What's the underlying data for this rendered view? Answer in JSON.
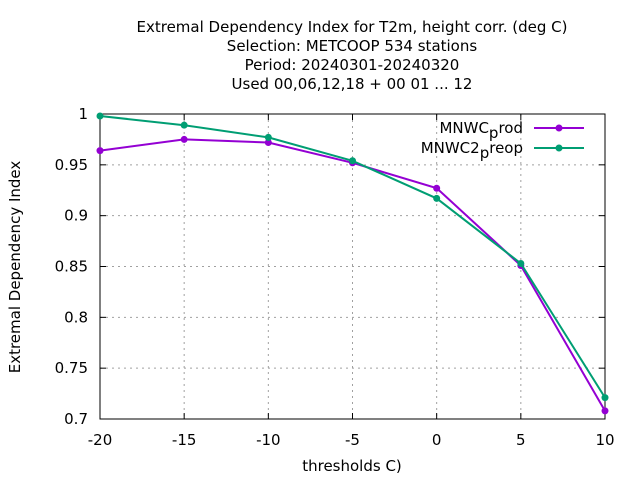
{
  "chart_data": {
    "type": "line",
    "title_lines": [
      "Extremal Dependency Index  for T2m, height corr. (deg C)",
      "Selection: METCOOP    534 stations",
      "Period: 20240301-20240320",
      "Used  00,06,12,18 + 00 01 ... 12"
    ],
    "xlabel": "thresholds C)",
    "ylabel": "Extremal Dependency Index",
    "xlim": [
      -20,
      10
    ],
    "ylim": [
      0.7,
      1.0
    ],
    "xticks": [
      -20,
      -15,
      -10,
      -5,
      0,
      5,
      10
    ],
    "yticks": [
      0.7,
      0.75,
      0.8,
      0.85,
      0.9,
      0.95,
      1.0
    ],
    "ytick_labels": [
      "0.7",
      "0.75",
      "0.8",
      "0.85",
      "0.9",
      "0.95",
      "1"
    ],
    "grid": true,
    "legend_position": "top-right",
    "series": [
      {
        "name": "MNWC_prod",
        "legend_main": "MNWC",
        "legend_sub": "p",
        "legend_rest": "rod",
        "color": "#9400d3",
        "x": [
          -20,
          -15,
          -10,
          -5,
          0,
          5,
          10
        ],
        "y": [
          0.964,
          0.975,
          0.972,
          0.952,
          0.927,
          0.851,
          0.708
        ]
      },
      {
        "name": "MNWC2_preop",
        "legend_main": "MNWC2",
        "legend_sub": "p",
        "legend_rest": "reop",
        "color": "#009e73",
        "x": [
          -20,
          -15,
          -10,
          -5,
          0,
          5,
          10
        ],
        "y": [
          0.998,
          0.989,
          0.977,
          0.954,
          0.917,
          0.853,
          0.721
        ]
      }
    ]
  }
}
